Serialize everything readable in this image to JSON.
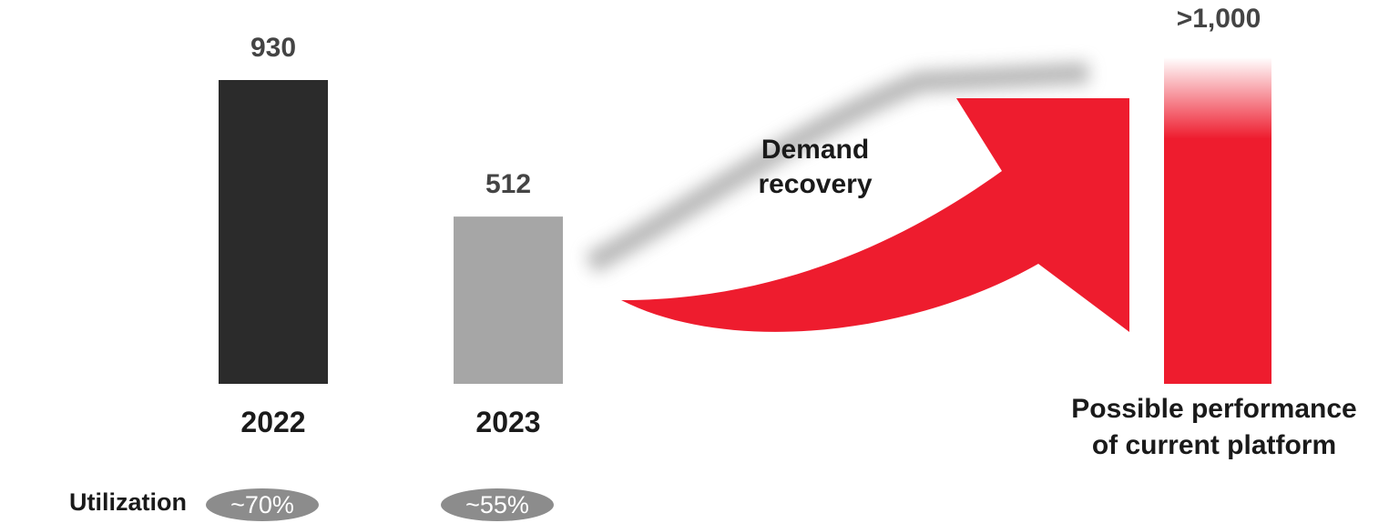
{
  "chart_data": {
    "type": "bar",
    "categories": [
      "2022",
      "2023"
    ],
    "values": [
      930,
      512
    ],
    "value_labels": [
      "930",
      "512"
    ],
    "bar_colors": [
      "#2b2b2b",
      "#a6a6a6"
    ],
    "target": {
      "value": 1000,
      "label": ">1,000",
      "caption_line1": "Possible performance",
      "caption_line2": "of current platform",
      "color": "#ee1c2e"
    },
    "arrow": {
      "line1": "Demand",
      "line2": "recovery",
      "color": "#ee1c2e"
    },
    "utilization": {
      "label": "Utilization",
      "values": [
        "~70%",
        "~55%"
      ]
    },
    "title": "",
    "xlabel": "",
    "ylabel": "",
    "grid": false
  }
}
